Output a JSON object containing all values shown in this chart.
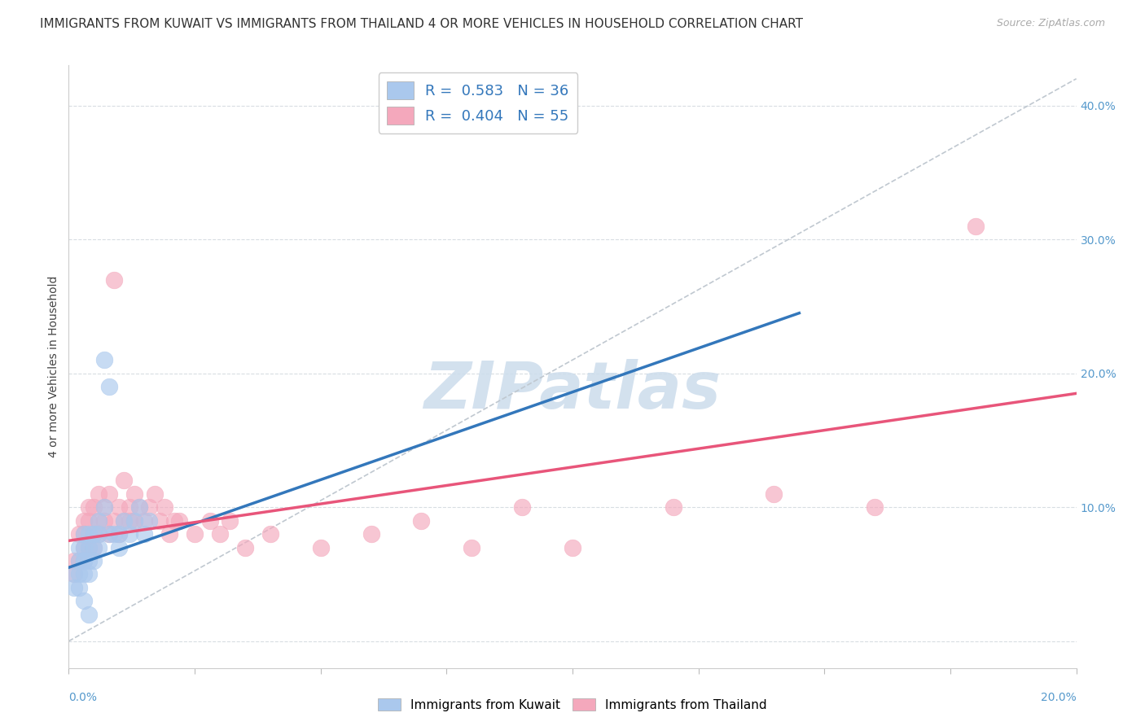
{
  "title": "IMMIGRANTS FROM KUWAIT VS IMMIGRANTS FROM THAILAND 4 OR MORE VEHICLES IN HOUSEHOLD CORRELATION CHART",
  "source": "Source: ZipAtlas.com",
  "ylabel": "4 or more Vehicles in Household",
  "xlim": [
    0.0,
    0.2
  ],
  "ylim": [
    -0.02,
    0.43
  ],
  "kuwait_R": 0.583,
  "kuwait_N": 36,
  "thailand_R": 0.404,
  "thailand_N": 55,
  "kuwait_color": "#aac8ed",
  "thailand_color": "#f4a8bc",
  "kuwait_line_color": "#3377bb",
  "thailand_line_color": "#e8557a",
  "dashed_line_color": "#c0c8d0",
  "background_color": "#ffffff",
  "grid_color": "#d8dde2",
  "watermark_text": "ZIPatlas",
  "watermark_color": "#ccdcec",
  "title_fontsize": 11,
  "tick_label_color": "#5599cc",
  "legend_text_color": "#222222",
  "legend_r_color": "#3377bb",
  "kuwait_scatter_x": [
    0.001,
    0.001,
    0.002,
    0.002,
    0.002,
    0.002,
    0.003,
    0.003,
    0.003,
    0.003,
    0.003,
    0.004,
    0.004,
    0.004,
    0.004,
    0.005,
    0.005,
    0.005,
    0.006,
    0.006,
    0.006,
    0.007,
    0.007,
    0.008,
    0.008,
    0.009,
    0.01,
    0.01,
    0.011,
    0.012,
    0.013,
    0.014,
    0.015,
    0.016,
    0.003,
    0.004
  ],
  "kuwait_scatter_y": [
    0.05,
    0.04,
    0.06,
    0.07,
    0.05,
    0.04,
    0.07,
    0.06,
    0.08,
    0.05,
    0.06,
    0.07,
    0.06,
    0.08,
    0.05,
    0.07,
    0.08,
    0.06,
    0.09,
    0.07,
    0.08,
    0.21,
    0.1,
    0.19,
    0.08,
    0.08,
    0.07,
    0.08,
    0.09,
    0.08,
    0.09,
    0.1,
    0.08,
    0.09,
    0.03,
    0.02
  ],
  "thailand_scatter_x": [
    0.001,
    0.001,
    0.002,
    0.002,
    0.003,
    0.003,
    0.003,
    0.004,
    0.004,
    0.004,
    0.005,
    0.005,
    0.005,
    0.006,
    0.006,
    0.006,
    0.007,
    0.007,
    0.008,
    0.008,
    0.009,
    0.009,
    0.01,
    0.01,
    0.011,
    0.011,
    0.012,
    0.012,
    0.013,
    0.013,
    0.014,
    0.015,
    0.016,
    0.017,
    0.018,
    0.019,
    0.02,
    0.021,
    0.022,
    0.025,
    0.028,
    0.03,
    0.032,
    0.035,
    0.04,
    0.05,
    0.06,
    0.07,
    0.08,
    0.09,
    0.1,
    0.12,
    0.14,
    0.16,
    0.18
  ],
  "thailand_scatter_y": [
    0.06,
    0.05,
    0.08,
    0.06,
    0.09,
    0.08,
    0.07,
    0.09,
    0.1,
    0.07,
    0.1,
    0.08,
    0.07,
    0.11,
    0.09,
    0.08,
    0.1,
    0.09,
    0.11,
    0.08,
    0.27,
    0.09,
    0.1,
    0.08,
    0.12,
    0.09,
    0.1,
    0.09,
    0.11,
    0.09,
    0.1,
    0.09,
    0.1,
    0.11,
    0.09,
    0.1,
    0.08,
    0.09,
    0.09,
    0.08,
    0.09,
    0.08,
    0.09,
    0.07,
    0.08,
    0.07,
    0.08,
    0.09,
    0.07,
    0.1,
    0.07,
    0.1,
    0.11,
    0.1,
    0.31
  ],
  "kuwait_line_x0": 0.0,
  "kuwait_line_x1": 0.145,
  "kuwait_line_y0": 0.055,
  "kuwait_line_y1": 0.245,
  "thailand_line_x0": 0.0,
  "thailand_line_x1": 0.2,
  "thailand_line_y0": 0.075,
  "thailand_line_y1": 0.185
}
